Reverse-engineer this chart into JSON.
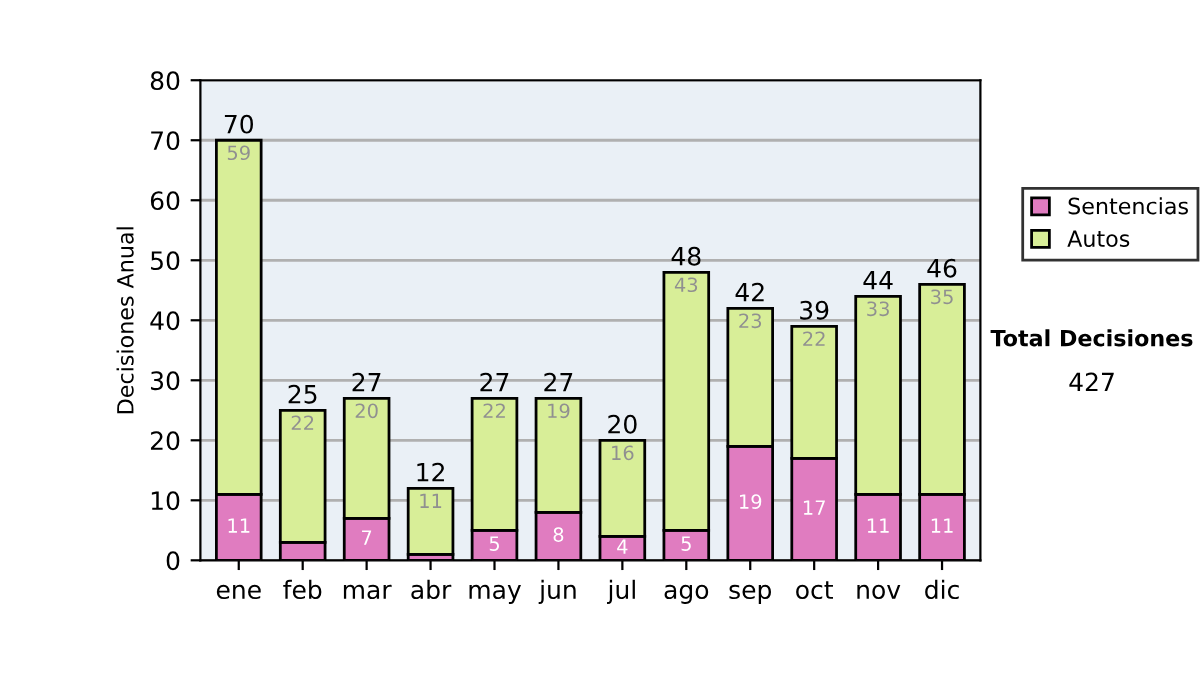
{
  "chart_data": {
    "type": "bar",
    "stacked": true,
    "ylabel": "Decisiones Anual",
    "categories": [
      "ene",
      "feb",
      "mar",
      "abr",
      "may",
      "jun",
      "jul",
      "ago",
      "sep",
      "oct",
      "nov",
      "dic"
    ],
    "series": [
      {
        "name": "Sentencias",
        "color": "#e07cc0",
        "values": [
          11,
          3,
          7,
          1,
          5,
          8,
          4,
          5,
          19,
          17,
          11,
          11
        ],
        "value_labels": [
          "11",
          null,
          "7",
          null,
          "5",
          "8",
          "4",
          "5",
          "19",
          "17",
          "11",
          "11"
        ]
      },
      {
        "name": "Autos",
        "color": "#d8ee98",
        "values": [
          59,
          22,
          20,
          11,
          22,
          19,
          16,
          43,
          23,
          22,
          33,
          35
        ],
        "value_labels": [
          "59",
          "22",
          "20",
          "11",
          "22",
          "19",
          "16",
          "43",
          "23",
          "22",
          "33",
          "35"
        ]
      }
    ],
    "totals": [
      "70",
      "25",
      "27",
      "12",
      "27",
      "27",
      "20",
      "48",
      "42",
      "39",
      "44",
      "46"
    ],
    "ylim": [
      0,
      80
    ],
    "yticks": [
      0,
      10,
      20,
      30,
      40,
      50,
      60,
      70,
      80
    ],
    "grid": "y",
    "legend": "right",
    "annotations": [
      "Total Decisiones",
      "427"
    ]
  }
}
